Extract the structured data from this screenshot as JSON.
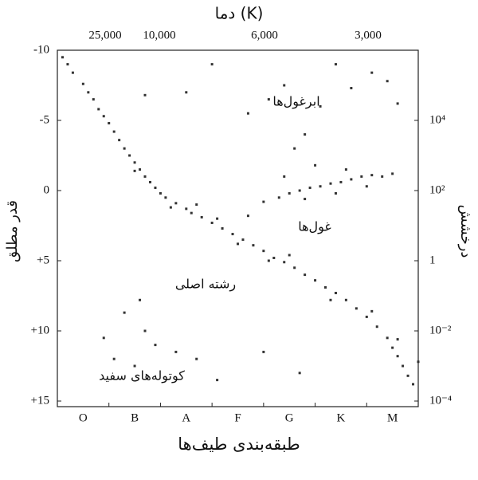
{
  "chart_data": {
    "type": "scatter",
    "title": "دما (K)",
    "ylabel": "قدر مطلق",
    "y2label": "درخشش",
    "xlabel": "طبقه‌بندی طیف‌ها",
    "categories": [
      "O",
      "B",
      "A",
      "F",
      "G",
      "K",
      "M"
    ],
    "top_axis_labels": [
      "25,000",
      "10,000",
      "6,000",
      "3,000"
    ],
    "ylim": [
      -10,
      15
    ],
    "y_inverted": true,
    "yticks": [
      -10,
      -5,
      0,
      {
        "value": 5,
        "label": "+5"
      },
      {
        "value": 10,
        "label": "+10"
      },
      {
        "value": 15,
        "label": "+15"
      }
    ],
    "y2lim": [
      1000000,
      0.0001
    ],
    "y2scale": "log",
    "y2ticks": [
      {
        "value": 10000,
        "label": "10⁴"
      },
      {
        "value": 100,
        "label": "10²"
      },
      1,
      {
        "value": 0.01,
        "label": "10⁻²"
      },
      {
        "value": 0.0001,
        "label": "10⁻⁴"
      }
    ],
    "grid": false,
    "series": [
      {
        "name": "رشته اصلی",
        "color": "#333333",
        "x": [
          -0.4,
          -0.3,
          -0.2,
          0.0,
          0.1,
          0.2,
          0.3,
          0.4,
          0.5,
          0.6,
          0.7,
          0.8,
          0.9,
          1.0,
          1.1,
          1.2,
          1.3,
          1.4,
          1.5,
          1.6,
          1.8,
          2.0,
          2.1,
          2.3,
          2.5,
          2.7,
          2.9,
          3.1,
          3.3,
          3.5,
          3.7,
          3.9,
          4.1,
          4.3,
          4.5,
          4.7,
          4.9,
          5.1,
          5.3,
          5.5,
          5.7,
          5.9,
          6.0,
          6.1,
          6.2,
          6.3,
          6.4,
          6.5,
          1.0,
          2.2,
          3.0,
          4.0,
          4.8,
          5.6,
          6.1,
          1.7,
          2.6,
          3.6
        ],
        "values": [
          -9.5,
          -9.0,
          -8.4,
          -7.6,
          -7.0,
          -6.5,
          -5.8,
          -5.3,
          -4.8,
          -4.2,
          -3.6,
          -3.0,
          -2.5,
          -2.0,
          -1.5,
          -1.0,
          -0.6,
          -0.2,
          0.2,
          0.5,
          0.9,
          1.3,
          1.6,
          1.9,
          2.3,
          2.7,
          3.1,
          3.5,
          3.9,
          4.3,
          4.8,
          5.1,
          5.5,
          6.0,
          6.4,
          6.9,
          7.3,
          7.8,
          8.4,
          9.0,
          9.7,
          10.5,
          11.2,
          11.8,
          12.5,
          13.2,
          13.8,
          12.2,
          -1.4,
          1.0,
          3.8,
          4.6,
          7.8,
          8.6,
          10.6,
          1.2,
          2.0,
          5.0
        ]
      },
      {
        "name": "غول‌ها",
        "color": "#333333",
        "x": [
          3.2,
          3.5,
          3.8,
          4.0,
          4.2,
          4.4,
          4.6,
          4.8,
          5.0,
          5.2,
          5.4,
          5.6,
          5.8,
          6.0,
          4.3,
          4.9,
          5.5,
          5.1,
          4.5,
          3.9
        ],
        "values": [
          1.8,
          0.8,
          0.5,
          0.2,
          0.0,
          -0.2,
          -0.3,
          -0.5,
          -0.6,
          -0.8,
          -1.0,
          -1.1,
          -1.0,
          -1.2,
          0.6,
          0.2,
          -0.3,
          -1.5,
          -1.8,
          -1.0
        ]
      },
      {
        "name": "ابرغول‌ها",
        "color": "#333333",
        "x": [
          3.6,
          3.9,
          4.3,
          4.6,
          5.2,
          5.6,
          5.9,
          4.9,
          2.0,
          2.5,
          3.2,
          6.1,
          1.2,
          4.1
        ],
        "values": [
          -6.5,
          -7.5,
          -4.0,
          -6.0,
          -7.3,
          -8.4,
          -7.8,
          -9.0,
          -7.0,
          -9.0,
          -5.5,
          -6.2,
          -6.8,
          -3.0
        ]
      },
      {
        "name": "کوتوله‌های سفید",
        "color": "#333333",
        "x": [
          0.4,
          0.6,
          1.0,
          1.2,
          1.4,
          1.8,
          2.2,
          0.8,
          1.1,
          2.6,
          3.5,
          4.2
        ],
        "values": [
          10.5,
          12.0,
          12.5,
          10.0,
          11.0,
          11.5,
          12.0,
          8.7,
          7.8,
          13.5,
          11.5,
          13.0
        ]
      }
    ]
  }
}
